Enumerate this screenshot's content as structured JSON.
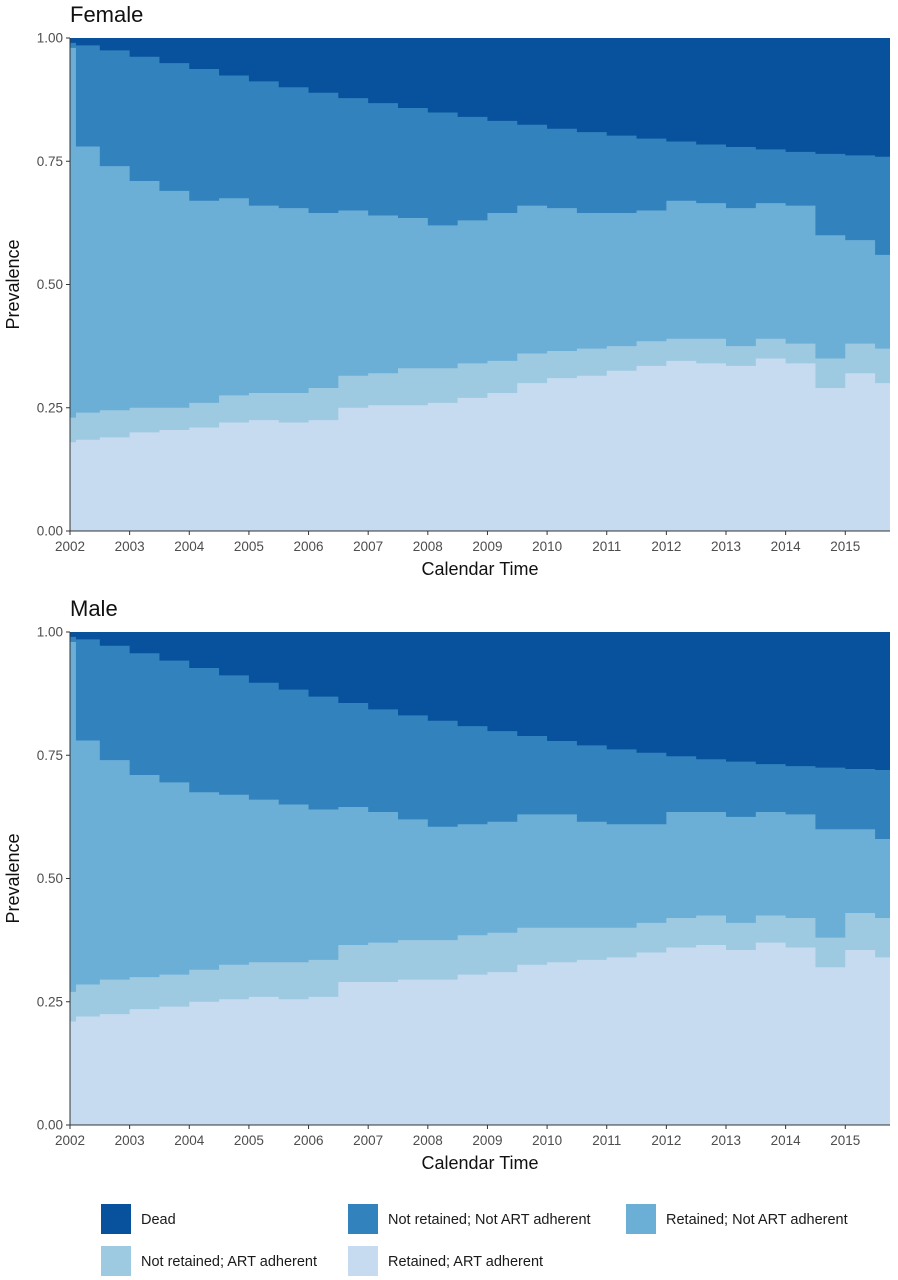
{
  "chart_data": {
    "type": "area",
    "stacked": true,
    "xlabel": "Calendar Time",
    "ylabel": "Prevalence",
    "x_ticks": [
      "2002",
      "2003",
      "2004",
      "2005",
      "2006",
      "2007",
      "2008",
      "2009",
      "2010",
      "2011",
      "2012",
      "2013",
      "2014",
      "2015"
    ],
    "y_ticks": [
      "0.00",
      "0.25",
      "0.50",
      "0.75",
      "1.00"
    ],
    "xlim": [
      2002.0,
      2015.75
    ],
    "ylim": [
      0,
      1
    ],
    "grid": false,
    "legend_position": "bottom",
    "categories_stack_order_bottom_to_top": [
      "Retained; ART adherent",
      "Not retained; ART adherent",
      "Retained; Not ART adherent",
      "Not retained; Not ART adherent",
      "Dead"
    ],
    "legend": [
      {
        "label": "Dead",
        "color": "#08519c"
      },
      {
        "label": "Not retained; Not ART adherent",
        "color": "#3182bd"
      },
      {
        "label": "Retained; Not ART adherent",
        "color": "#6baed6"
      },
      {
        "label": "Not retained; ART adherent",
        "color": "#9ecae1"
      },
      {
        "label": "Retained; ART adherent",
        "color": "#c6dbef"
      }
    ],
    "panels": [
      {
        "title": "Female",
        "x": [
          2002.0,
          2002.1,
          2002.5,
          2003.0,
          2003.5,
          2004.0,
          2004.5,
          2005.0,
          2005.5,
          2006.0,
          2006.5,
          2007.0,
          2007.5,
          2008.0,
          2008.5,
          2009.0,
          2009.5,
          2010.0,
          2010.5,
          2011.0,
          2011.5,
          2012.0,
          2012.5,
          2013.0,
          2013.5,
          2014.0,
          2014.5,
          2015.0,
          2015.5,
          2015.75
        ],
        "cumulative_upper_bounds": {
          "Retained; ART adherent": [
            0.18,
            0.185,
            0.19,
            0.2,
            0.205,
            0.21,
            0.22,
            0.225,
            0.22,
            0.225,
            0.25,
            0.255,
            0.255,
            0.26,
            0.27,
            0.28,
            0.3,
            0.31,
            0.315,
            0.325,
            0.335,
            0.345,
            0.34,
            0.335,
            0.35,
            0.34,
            0.29,
            0.32,
            0.3,
            0.28
          ],
          "Not retained; ART adherent": [
            0.23,
            0.24,
            0.245,
            0.25,
            0.25,
            0.26,
            0.275,
            0.28,
            0.28,
            0.29,
            0.315,
            0.32,
            0.33,
            0.33,
            0.34,
            0.345,
            0.36,
            0.365,
            0.37,
            0.375,
            0.385,
            0.39,
            0.39,
            0.375,
            0.39,
            0.38,
            0.35,
            0.38,
            0.37,
            0.38
          ],
          "Retained; Not ART adherent": [
            0.98,
            0.78,
            0.74,
            0.71,
            0.69,
            0.67,
            0.675,
            0.66,
            0.655,
            0.645,
            0.65,
            0.64,
            0.635,
            0.62,
            0.63,
            0.645,
            0.66,
            0.655,
            0.645,
            0.645,
            0.65,
            0.67,
            0.665,
            0.655,
            0.665,
            0.66,
            0.6,
            0.59,
            0.56,
            0.545
          ],
          "Not retained; Not ART adherent": [
            0.99,
            0.985,
            0.975,
            0.962,
            0.949,
            0.937,
            0.924,
            0.912,
            0.9,
            0.889,
            0.878,
            0.868,
            0.858,
            0.849,
            0.84,
            0.832,
            0.824,
            0.816,
            0.809,
            0.802,
            0.796,
            0.79,
            0.784,
            0.779,
            0.774,
            0.769,
            0.765,
            0.762,
            0.759,
            0.757
          ],
          "Dead": [
            1,
            1,
            1,
            1,
            1,
            1,
            1,
            1,
            1,
            1,
            1,
            1,
            1,
            1,
            1,
            1,
            1,
            1,
            1,
            1,
            1,
            1,
            1,
            1,
            1,
            1,
            1,
            1,
            1,
            1
          ]
        }
      },
      {
        "title": "Male",
        "x": [
          2002.0,
          2002.1,
          2002.5,
          2003.0,
          2003.5,
          2004.0,
          2004.5,
          2005.0,
          2005.5,
          2006.0,
          2006.5,
          2007.0,
          2007.5,
          2008.0,
          2008.5,
          2009.0,
          2009.5,
          2010.0,
          2010.5,
          2011.0,
          2011.5,
          2012.0,
          2012.5,
          2013.0,
          2013.5,
          2014.0,
          2014.5,
          2015.0,
          2015.5,
          2015.75
        ],
        "cumulative_upper_bounds": {
          "Retained; ART adherent": [
            0.21,
            0.22,
            0.225,
            0.235,
            0.24,
            0.25,
            0.255,
            0.26,
            0.255,
            0.26,
            0.29,
            0.29,
            0.295,
            0.295,
            0.305,
            0.31,
            0.325,
            0.33,
            0.335,
            0.34,
            0.35,
            0.36,
            0.365,
            0.355,
            0.37,
            0.36,
            0.32,
            0.355,
            0.34,
            0.33
          ],
          "Not retained; ART adherent": [
            0.27,
            0.285,
            0.295,
            0.3,
            0.305,
            0.315,
            0.325,
            0.33,
            0.33,
            0.335,
            0.365,
            0.37,
            0.375,
            0.375,
            0.385,
            0.39,
            0.4,
            0.4,
            0.4,
            0.4,
            0.41,
            0.42,
            0.425,
            0.41,
            0.425,
            0.42,
            0.38,
            0.43,
            0.42,
            0.435
          ],
          "Retained; Not ART adherent": [
            0.98,
            0.78,
            0.74,
            0.71,
            0.695,
            0.675,
            0.67,
            0.66,
            0.65,
            0.64,
            0.645,
            0.635,
            0.62,
            0.605,
            0.61,
            0.615,
            0.63,
            0.63,
            0.615,
            0.61,
            0.61,
            0.635,
            0.635,
            0.625,
            0.635,
            0.63,
            0.6,
            0.6,
            0.58,
            0.575
          ],
          "Not retained; Not ART adherent": [
            0.99,
            0.985,
            0.972,
            0.957,
            0.942,
            0.927,
            0.912,
            0.897,
            0.883,
            0.869,
            0.856,
            0.843,
            0.831,
            0.82,
            0.809,
            0.799,
            0.789,
            0.779,
            0.77,
            0.762,
            0.755,
            0.748,
            0.742,
            0.737,
            0.732,
            0.728,
            0.725,
            0.722,
            0.72,
            0.72
          ],
          "Dead": [
            1,
            1,
            1,
            1,
            1,
            1,
            1,
            1,
            1,
            1,
            1,
            1,
            1,
            1,
            1,
            1,
            1,
            1,
            1,
            1,
            1,
            1,
            1,
            1,
            1,
            1,
            1,
            1,
            1,
            1
          ]
        }
      }
    ]
  }
}
